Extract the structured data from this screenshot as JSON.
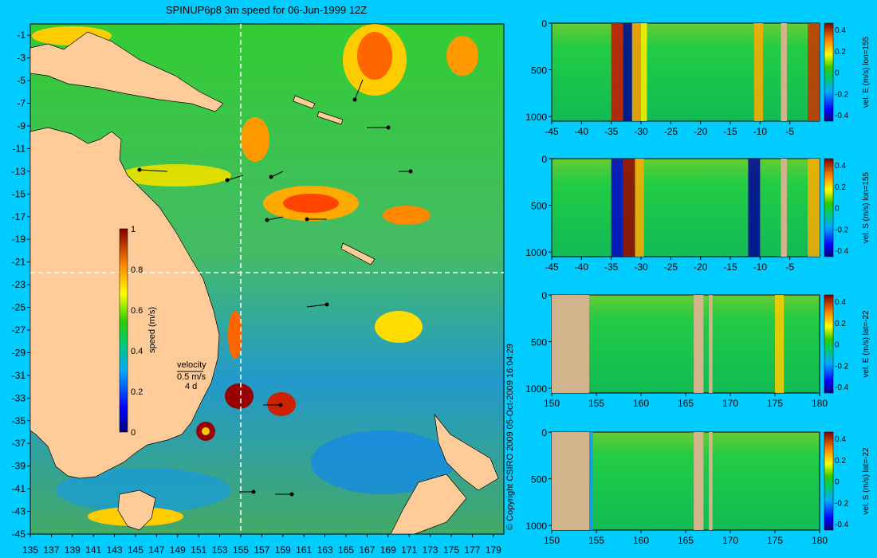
{
  "chart_data": [
    {
      "type": "heatmap",
      "title": "SPINUP6p8 3m speed for 06-Jun-1999 12Z",
      "x_ticks": [
        "135",
        "137",
        "139",
        "141",
        "143",
        "145",
        "147",
        "149",
        "151",
        "153",
        "155",
        "157",
        "159",
        "161",
        "163",
        "165",
        "167",
        "169",
        "171",
        "173",
        "175",
        "177",
        "179"
      ],
      "y_ticks": [
        "-1",
        "-3",
        "-5",
        "-7",
        "-9",
        "-11",
        "-13",
        "-15",
        "-17",
        "-19",
        "-21",
        "-23",
        "-25",
        "-27",
        "-29",
        "-31",
        "-33",
        "-35",
        "-37",
        "-39",
        "-41",
        "-43",
        "-45"
      ],
      "xlim": [
        135,
        180
      ],
      "ylim": [
        -45,
        0
      ],
      "colorbar": {
        "label": "speed (m/s)",
        "ticks": [
          "1",
          "0.8",
          "0.6",
          "0.4",
          "0.2",
          "0"
        ],
        "range": [
          0,
          1
        ]
      },
      "velocity_key": {
        "label": "velocity",
        "speed": "0.5 m/s",
        "duration": "4 d"
      },
      "section_lines": {
        "lon": 155,
        "lat": -22
      }
    },
    {
      "type": "heatmap",
      "ylabel": "vel. E (m/s) lon=155",
      "x_ticks": [
        "-45",
        "-40",
        "-35",
        "-30",
        "-25",
        "-20",
        "-15",
        "-10",
        "-5"
      ],
      "y_ticks": [
        "0",
        "500",
        "1000"
      ],
      "xlim": [
        -45,
        0
      ],
      "ylim": [
        1050,
        0
      ],
      "colorbar_ticks": [
        "0.4",
        "0.2",
        "0",
        "-0.2",
        "-0.4"
      ]
    },
    {
      "type": "heatmap",
      "ylabel": "vel. S (m/s) lon=155",
      "x_ticks": [
        "-45",
        "-40",
        "-35",
        "-30",
        "-25",
        "-20",
        "-15",
        "-10",
        "-5"
      ],
      "y_ticks": [
        "0",
        "500",
        "1000"
      ],
      "xlim": [
        -45,
        0
      ],
      "ylim": [
        1050,
        0
      ],
      "colorbar_ticks": [
        "0.4",
        "0.2",
        "0",
        "-0.2",
        "-0.4"
      ]
    },
    {
      "type": "heatmap",
      "ylabel": "vel. E (m/s) lat=-22",
      "x_ticks": [
        "150",
        "155",
        "160",
        "165",
        "170",
        "175",
        "180"
      ],
      "y_ticks": [
        "0",
        "500",
        "1000"
      ],
      "xlim": [
        150,
        180
      ],
      "ylim": [
        1050,
        0
      ],
      "colorbar_ticks": [
        "0.4",
        "0.2",
        "0",
        "-0.2",
        "-0.4"
      ]
    },
    {
      "type": "heatmap",
      "ylabel": "vel. S (m/s) lat=-22",
      "x_ticks": [
        "150",
        "155",
        "160",
        "165",
        "170",
        "175",
        "180"
      ],
      "y_ticks": [
        "0",
        "500",
        "1000"
      ],
      "xlim": [
        150,
        180
      ],
      "ylim": [
        1050,
        0
      ],
      "colorbar_ticks": [
        "0.4",
        "0.2",
        "0",
        "-0.2",
        "-0.4"
      ]
    }
  ],
  "copyright": "© Copyright CSIRO 2009   05-Oct-2009 16:04:29",
  "colors": {
    "background": "#00ccff",
    "land": "#ffcc99",
    "section_land": "#d2b48c",
    "low": "#000080",
    "mid": "#00cc33",
    "high": "#990000"
  }
}
